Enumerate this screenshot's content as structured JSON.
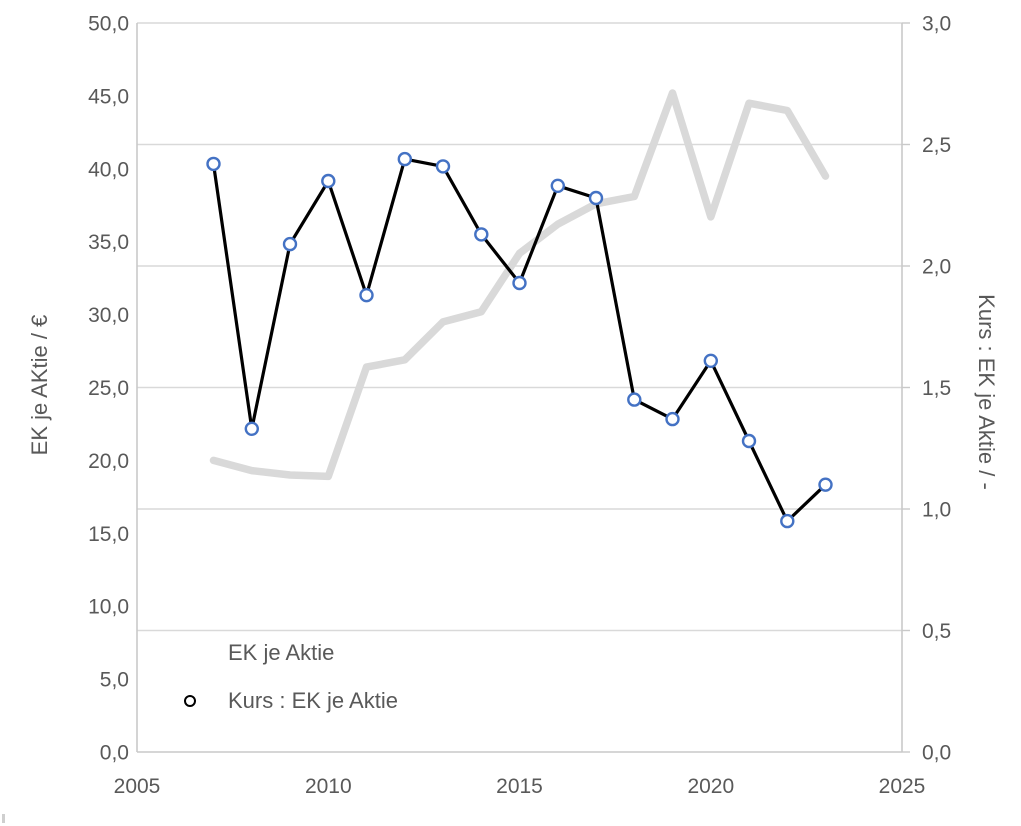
{
  "chart_data": {
    "type": "line",
    "title": "",
    "x": [
      2007,
      2008,
      2009,
      2010,
      2011,
      2012,
      2013,
      2014,
      2015,
      2016,
      2017,
      2018,
      2019,
      2020,
      2021,
      2022,
      2023
    ],
    "series": [
      {
        "name": "EK je Aktie",
        "axis": "left",
        "color": "#d9d9d9",
        "stroke_width": 7.5,
        "marker": "none",
        "values": [
          20.0,
          19.3,
          19.0,
          18.9,
          26.4,
          26.9,
          29.5,
          30.2,
          34.2,
          36.2,
          37.6,
          38.1,
          45.2,
          36.7,
          44.5,
          44.0,
          39.5
        ]
      },
      {
        "name": "Kurs : EK je Aktie",
        "axis": "right",
        "color": "#000000",
        "stroke_width": 3.2,
        "marker": "circle",
        "marker_color": "#4472c4",
        "values": [
          2.42,
          1.33,
          2.09,
          2.35,
          1.88,
          2.44,
          2.41,
          2.13,
          1.93,
          2.33,
          2.28,
          1.45,
          1.37,
          1.61,
          1.28,
          0.95,
          1.1
        ]
      }
    ],
    "left_axis": {
      "title": "EK je AKtie / €",
      "min": 0,
      "max": 50,
      "ticks": [
        0,
        5,
        10,
        15,
        20,
        25,
        30,
        35,
        40,
        45,
        50
      ],
      "tick_labels": [
        "0,0",
        "5,0",
        "10,0",
        "15,0",
        "20,0",
        "25,0",
        "30,0",
        "35,0",
        "40,0",
        "45,0",
        "50,0"
      ]
    },
    "right_axis": {
      "title": "Kurs : EK je Aktie / -",
      "min": 0,
      "max": 3,
      "ticks": [
        0,
        0.5,
        1,
        1.5,
        2,
        2.5,
        3
      ],
      "tick_labels": [
        "0,0",
        "0,5",
        "1,0",
        "1,5",
        "2,0",
        "2,5",
        "3,0"
      ]
    },
    "x_axis": {
      "min": 2005,
      "max": 2025,
      "ticks": [
        2005,
        2010,
        2015,
        2020,
        2025
      ],
      "tick_labels": [
        "2005",
        "2010",
        "2015",
        "2020",
        "2025"
      ]
    },
    "grid": "horizontal, at right-axis 0,5 steps",
    "legend_position": "inside bottom-left",
    "colors": {
      "text": "#595959",
      "gridline": "#d9d9d9",
      "axis_line": "#c9c9c9",
      "marker_blue": "#4472c4",
      "series_gray": "#d9d9d9"
    }
  },
  "legend": {
    "items": [
      {
        "label": "EK je Aktie"
      },
      {
        "label": "Kurs : EK je Aktie"
      }
    ]
  }
}
